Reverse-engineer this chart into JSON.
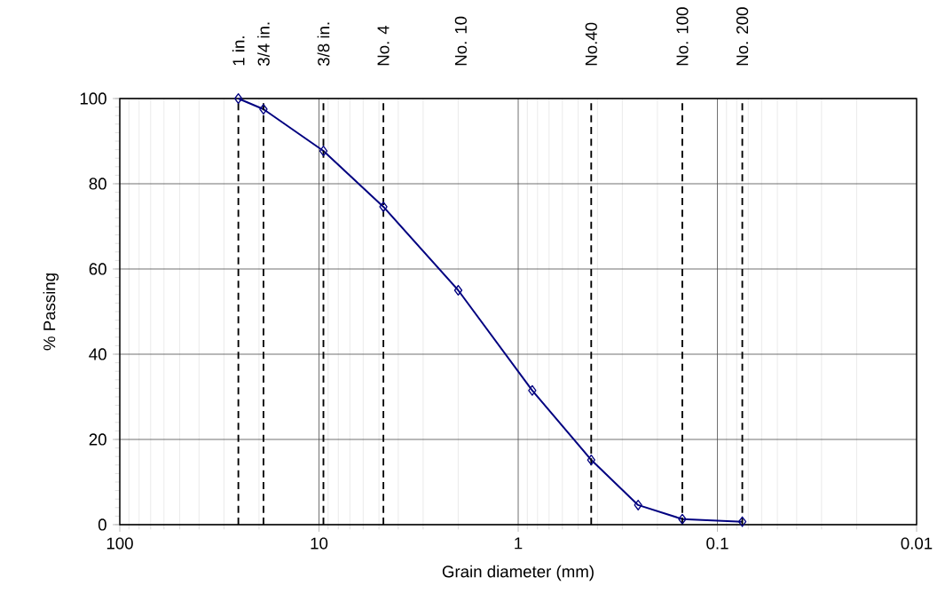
{
  "chart_data": {
    "type": "line",
    "xlabel": "Grain diameter (mm)",
    "ylabel": "% Passing",
    "x": [
      25.4,
      19,
      9.5,
      4.75,
      2,
      0.85,
      0.43,
      0.25,
      0.15,
      0.075
    ],
    "series": [
      {
        "color": "#000080",
        "values": [
          100,
          97.5,
          87.7,
          74.6,
          55,
          31.5,
          15.2,
          4.6,
          1.3,
          0.7
        ]
      }
    ],
    "annotations": [
      "No. 10"
    ],
    "log": "x",
    "xlim": [
      100,
      0.01
    ],
    "xticks": [
      100,
      10,
      1,
      0.1,
      0.01
    ],
    "ylim": [
      0,
      100
    ],
    "yticks": [
      0,
      20,
      40,
      60,
      80,
      100
    ],
    "grid": true,
    "marker": "diamond",
    "line_style": "solid",
    "ref_lines": [
      {
        "axis": "x",
        "value": 25.4,
        "label": "1  in.",
        "color": "#000000",
        "line_style": "dashed"
      },
      {
        "axis": "x",
        "value": 19,
        "label": "3/4 in.",
        "color": "#000000",
        "line_style": "dashed"
      },
      {
        "axis": "x",
        "value": 9.5,
        "label": "3/8 in.",
        "color": "#000000",
        "line_style": "dashed"
      },
      {
        "axis": "x",
        "value": 4.75,
        "label": "No. 4",
        "color": "#000000",
        "line_style": "dashed"
      },
      {
        "axis": "x",
        "value": 0.43,
        "label": "No.40",
        "color": "#000000",
        "line_style": "dashed"
      },
      {
        "axis": "x",
        "value": 0.15,
        "label": "No. 100",
        "color": "#000000",
        "line_style": "dashed"
      },
      {
        "axis": "x",
        "value": 0.075,
        "label": "No. 200",
        "color": "#000000",
        "line_style": "dashed"
      }
    ]
  }
}
